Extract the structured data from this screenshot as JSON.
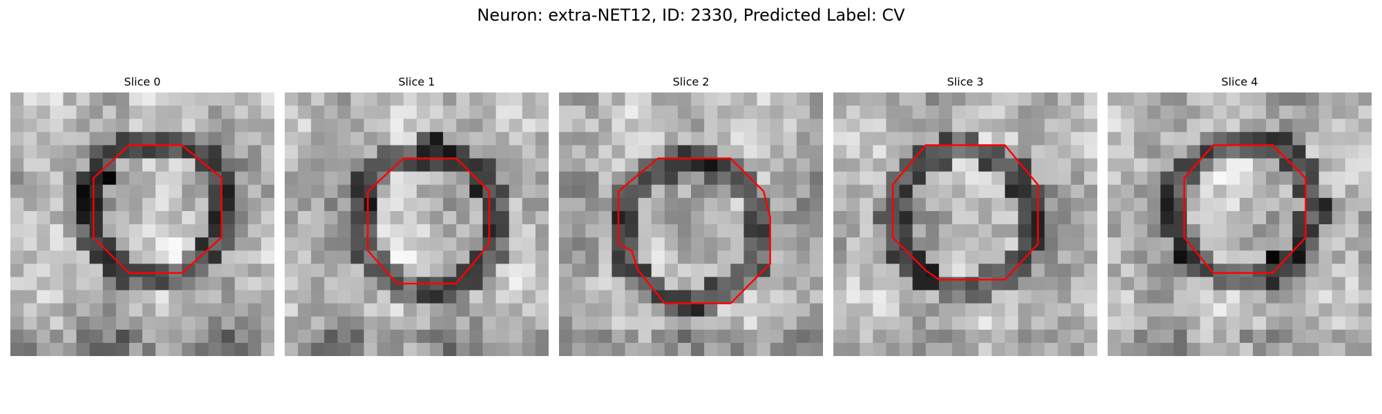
{
  "figure": {
    "title": "Neuron: extra-NET12, ID: 2330, Predicted Label: CV"
  },
  "panels": [
    {
      "title": "Slice 0",
      "outline": [
        [
          9,
          4
        ],
        [
          13,
          4
        ],
        [
          16,
          6.5
        ],
        [
          16,
          11
        ],
        [
          13,
          13.7
        ],
        [
          9,
          13.7
        ],
        [
          6.3,
          11
        ],
        [
          6.3,
          6.5
        ]
      ]
    },
    {
      "title": "Slice 1",
      "outline": [
        [
          9,
          5
        ],
        [
          13,
          5
        ],
        [
          15.5,
          7.5
        ],
        [
          15.5,
          11.5
        ],
        [
          13,
          14.5
        ],
        [
          8.5,
          14.5
        ],
        [
          6.3,
          12
        ],
        [
          6.3,
          7.5
        ]
      ]
    },
    {
      "title": "Slice 2",
      "outline": [
        [
          7.5,
          5
        ],
        [
          13,
          5
        ],
        [
          15.5,
          7.5
        ],
        [
          16,
          9.5
        ],
        [
          16,
          13
        ],
        [
          13,
          16
        ],
        [
          8,
          16
        ],
        [
          6,
          13.5
        ],
        [
          5.5,
          12
        ],
        [
          4.5,
          11.5
        ],
        [
          4.5,
          7.5
        ]
      ]
    },
    {
      "title": "Slice 3",
      "outline": [
        [
          7,
          4
        ],
        [
          13,
          4
        ],
        [
          15.5,
          7
        ],
        [
          15.5,
          11.5
        ],
        [
          13,
          14.2
        ],
        [
          8,
          14.2
        ],
        [
          7,
          13.5
        ],
        [
          4.5,
          11
        ],
        [
          4.5,
          7
        ]
      ]
    },
    {
      "title": "Slice 4",
      "outline": [
        [
          8,
          4
        ],
        [
          12.5,
          4
        ],
        [
          15,
          6.5
        ],
        [
          15,
          11
        ],
        [
          12.5,
          13.7
        ],
        [
          8,
          13.7
        ],
        [
          5.8,
          11
        ],
        [
          5.8,
          6.5
        ]
      ]
    }
  ],
  "colors": {
    "outline": "#ff0000"
  }
}
